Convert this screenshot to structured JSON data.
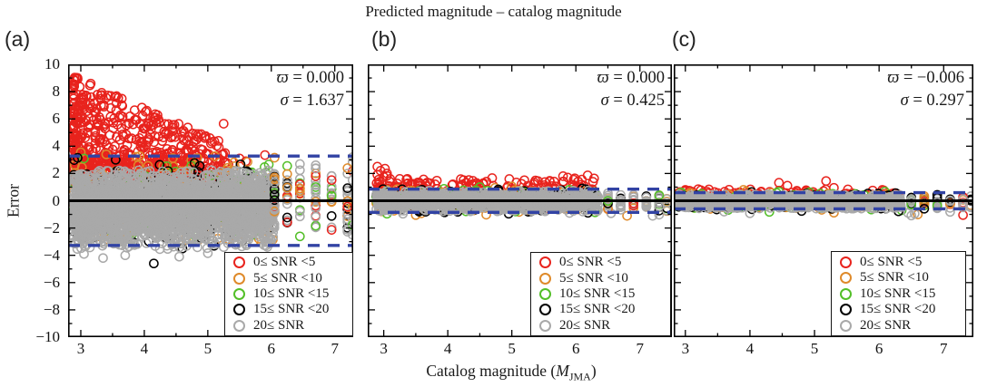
{
  "chart_data": {
    "type": "scatter",
    "title": "Predicted magnitude – catalog magnitude",
    "ylabel": "Error",
    "xlabel": {
      "prefix": "Catalog magnitude (",
      "var": "M",
      "sub": "JMA",
      "suffix": ")"
    },
    "axes": {
      "ylim": [
        -10,
        10
      ],
      "ytick_step": 2,
      "yminor_step": 1,
      "xticks": [
        3,
        4,
        5,
        6,
        7
      ],
      "xminor_step": 0.5,
      "grid": false
    },
    "colors": {
      "red": "#e8231d",
      "orange": "#df8a2a",
      "green": "#53bf28",
      "black": "#000000",
      "gray": "#a9a9a9",
      "band_line": "#3243a4",
      "zero_line": "#000000"
    },
    "legend": [
      {
        "label": "0≤ SNR <5",
        "color": "red"
      },
      {
        "label": "5≤ SNR <10",
        "color": "orange"
      },
      {
        "label": "10≤ SNR <15",
        "color": "green"
      },
      {
        "label": "15≤ SNR <20",
        "color": "black"
      },
      {
        "label": "20≤ SNR",
        "color": "gray"
      }
    ],
    "legend_position": "bottom-right",
    "panels": [
      {
        "id": "a",
        "label": "(a)",
        "stats": {
          "sym1": "ϖ",
          "val1": "= 0.000",
          "sym2": "σ",
          "val2": "= 1.637"
        },
        "mean": 0.0,
        "sigma": 1.637,
        "band": 3.274,
        "xlim": [
          2.8,
          7.29
        ],
        "series": [
          {
            "color": "red",
            "type": "wedge",
            "n": 540,
            "x0": 2.88,
            "x1": 5.35,
            "xpow": 1.7,
            "ymin": 1.4,
            "ytop0": 9.2,
            "yslope": -2.1,
            "ytopmin": 2.8,
            "ypow": 1.2,
            "extra": [
              [
                5.25,
                5.65
              ],
              [
                5.05,
                4.2
              ],
              [
                5.5,
                3.1
              ],
              [
                5.9,
                3.35
              ],
              [
                4.95,
                4.6
              ],
              [
                5.6,
                2.9
              ]
            ]
          },
          {
            "color": "red",
            "type": "band",
            "n": 200,
            "x0": 2.88,
            "x1": 4.9,
            "xpow": 1.0,
            "mu": 2.6,
            "sd": 0.55,
            "ymin": 1.7,
            "ymax": 3.8,
            "extra": []
          },
          {
            "color": "orange",
            "type": "band",
            "n": 260,
            "x0": 2.88,
            "x1": 6.05,
            "xpow": 1.1,
            "mu": -0.1,
            "sd": 1.55,
            "ymin": -3.4,
            "ymax": 3.3,
            "extra": [
              [
                3.0,
                3.55
              ],
              [
                5.95,
                -2.3
              ],
              [
                6.0,
                1.6
              ],
              [
                3.4,
                3.4
              ]
            ]
          },
          {
            "color": "green",
            "type": "band",
            "n": 170,
            "x0": 2.88,
            "x1": 6.05,
            "xpow": 1.1,
            "mu": 0.0,
            "sd": 1.3,
            "ymin": -2.9,
            "ymax": 2.9,
            "extra": [
              [
                5.7,
                -2.5
              ],
              [
                5.78,
                -2.15
              ],
              [
                3.05,
                3.1
              ]
            ]
          },
          {
            "color": "black",
            "type": "band",
            "n": 230,
            "x0": 2.88,
            "x1": 6.05,
            "xpow": 1.1,
            "mu": -0.2,
            "sd": 1.45,
            "ymin": -3.2,
            "ymax": 3.0,
            "extra": [
              [
                4.15,
                -4.6
              ],
              [
                2.95,
                3.15
              ],
              [
                3.55,
                3.0
              ],
              [
                4.6,
                -3.5
              ],
              [
                5.1,
                -3.3
              ]
            ]
          },
          {
            "color": "gray",
            "type": "band",
            "n": 2400,
            "x0": 2.88,
            "x1": 6.05,
            "xpow": 1.12,
            "mu": -0.55,
            "sd": 1.45,
            "ymin": -3.55,
            "ymax": 2.25,
            "extra": [
              [
                3.35,
                -4.2
              ],
              [
                4.55,
                -4.1
              ],
              [
                5.0,
                -3.85
              ],
              [
                3.05,
                -3.9
              ],
              [
                3.7,
                -4.0
              ]
            ]
          }
        ],
        "columns": {
          "mags": [
            6.05,
            6.25,
            6.45,
            6.7,
            6.95,
            7.2,
            7.28
          ],
          "counts": [
            24,
            20,
            18,
            24,
            16,
            20,
            12
          ],
          "mu": 0.3,
          "sd": 1.5,
          "ymin": -2.65,
          "ymax": 3.2,
          "weights": [
            [
              "gray",
              0.52
            ],
            [
              "orange",
              0.16
            ],
            [
              "black",
              0.12
            ],
            [
              "green",
              0.1
            ],
            [
              "red",
              0.1
            ]
          ]
        }
      },
      {
        "id": "b",
        "label": "(b)",
        "stats": {
          "sym1": "ϖ",
          "val1": "= 0.000",
          "sym2": "σ",
          "val2": "= 0.425"
        },
        "mean": 0.0,
        "sigma": 0.425,
        "band": 0.85,
        "xlim": [
          2.75,
          7.5
        ],
        "series": [
          {
            "color": "red",
            "type": "band",
            "n": 150,
            "x0": 2.88,
            "x1": 6.3,
            "xpow": 1.5,
            "mu": 1.0,
            "sd": 0.4,
            "ymin": 0.5,
            "ymax": 1.9,
            "extra": [
              [
                2.9,
                2.5
              ],
              [
                2.95,
                2.2
              ],
              [
                3.02,
                2.35
              ],
              [
                2.9,
                1.9
              ],
              [
                3.0,
                1.75
              ],
              [
                2.92,
                1.55
              ],
              [
                3.1,
                1.6
              ],
              [
                3.05,
                2.0
              ],
              [
                4.33,
                1.52
              ],
              [
                4.45,
                1.3
              ],
              [
                3.55,
                1.35
              ],
              [
                3.8,
                1.2
              ],
              [
                5.5,
                1.0
              ],
              [
                6.0,
                0.85
              ]
            ]
          },
          {
            "color": "red",
            "type": "band",
            "n": 60,
            "x0": 2.88,
            "x1": 6.3,
            "xpow": 1.0,
            "mu": 0.1,
            "sd": 0.3,
            "ymin": -0.6,
            "ymax": 0.6,
            "extra": []
          },
          {
            "color": "orange",
            "type": "band",
            "n": 190,
            "x0": 2.88,
            "x1": 6.3,
            "xpow": 1.1,
            "mu": 0.0,
            "sd": 0.45,
            "ymin": -1.0,
            "ymax": 1.0,
            "extra": [
              [
                3.5,
                -1.05
              ],
              [
                4.6,
                -1.02
              ],
              [
                6.8,
                -1.1
              ],
              [
                5.0,
                1.05
              ]
            ]
          },
          {
            "color": "green",
            "type": "band",
            "n": 130,
            "x0": 2.88,
            "x1": 6.3,
            "xpow": 1.1,
            "mu": 0.0,
            "sd": 0.4,
            "ymin": -0.9,
            "ymax": 0.9,
            "extra": [
              [
                3.05,
                -0.95
              ],
              [
                4.5,
                1.0
              ],
              [
                6.3,
                -0.85
              ]
            ]
          },
          {
            "color": "black",
            "type": "band",
            "n": 180,
            "x0": 2.88,
            "x1": 6.3,
            "xpow": 1.1,
            "mu": 0.0,
            "sd": 0.4,
            "ymin": -0.9,
            "ymax": 0.9,
            "extra": [
              [
                4.95,
                -0.95
              ],
              [
                6.15,
                0.85
              ]
            ]
          },
          {
            "color": "gray",
            "type": "band",
            "n": 1100,
            "x0": 2.88,
            "x1": 6.35,
            "xpow": 1.05,
            "mu": -0.05,
            "sd": 0.4,
            "ymin": -0.8,
            "ymax": 0.75,
            "extra": [
              [
                7.2,
                -1.1
              ],
              [
                7.3,
                -1.02
              ],
              [
                6.55,
                -0.92
              ],
              [
                3.3,
                -0.95
              ],
              [
                5.9,
                -0.9
              ]
            ]
          }
        ],
        "columns": {
          "mags": [
            6.5,
            6.7,
            6.9,
            7.1,
            7.3,
            7.42
          ],
          "counts": [
            18,
            14,
            12,
            14,
            12,
            8
          ],
          "mu": -0.08,
          "sd": 0.35,
          "ymin": -0.85,
          "ymax": 0.6,
          "weights": [
            [
              "gray",
              0.55
            ],
            [
              "orange",
              0.15
            ],
            [
              "black",
              0.12
            ],
            [
              "green",
              0.09
            ],
            [
              "red",
              0.09
            ]
          ]
        }
      },
      {
        "id": "c",
        "label": "(c)",
        "stats": {
          "sym1": "ϖ",
          "val1": "= −0.006",
          "sym2": "σ",
          "val2": "= 0.297"
        },
        "mean": -0.006,
        "sigma": 0.297,
        "band": 0.594,
        "xlim": [
          2.82,
          7.46
        ],
        "series": [
          {
            "color": "red",
            "type": "band",
            "n": 110,
            "x0": 2.88,
            "x1": 6.3,
            "xpow": 1.3,
            "mu": 0.45,
            "sd": 0.25,
            "ymin": 0.2,
            "ymax": 0.85,
            "extra": [
              [
                4.45,
                1.32
              ],
              [
                4.58,
                1.1
              ],
              [
                5.18,
                1.45
              ],
              [
                5.3,
                0.95
              ],
              [
                3.2,
                0.85
              ],
              [
                3.0,
                0.8
              ],
              [
                7.3,
                -1.05
              ],
              [
                5.9,
                0.75
              ],
              [
                6.05,
                0.8
              ]
            ]
          },
          {
            "color": "red",
            "type": "band",
            "n": 50,
            "x0": 2.88,
            "x1": 6.3,
            "xpow": 1.0,
            "mu": 0.0,
            "sd": 0.25,
            "ymin": -0.5,
            "ymax": 0.5,
            "extra": []
          },
          {
            "color": "orange",
            "type": "band",
            "n": 160,
            "x0": 2.88,
            "x1": 6.3,
            "xpow": 1.1,
            "mu": 0.0,
            "sd": 0.32,
            "ymin": -0.72,
            "ymax": 0.72,
            "extra": [
              [
                6.6,
                -1.0
              ],
              [
                5.3,
                -0.88
              ],
              [
                3.9,
                0.8
              ]
            ]
          },
          {
            "color": "green",
            "type": "band",
            "n": 120,
            "x0": 2.88,
            "x1": 6.3,
            "xpow": 1.1,
            "mu": 0.0,
            "sd": 0.3,
            "ymin": -0.68,
            "ymax": 0.68,
            "extra": [
              [
                4.3,
                -0.82
              ],
              [
                6.35,
                -0.7
              ]
            ]
          },
          {
            "color": "black",
            "type": "band",
            "n": 160,
            "x0": 2.88,
            "x1": 6.3,
            "xpow": 1.1,
            "mu": 0.0,
            "sd": 0.3,
            "ymin": -0.68,
            "ymax": 0.68,
            "extra": [
              [
                6.3,
                -0.78
              ],
              [
                4.8,
                -0.75
              ]
            ]
          },
          {
            "color": "gray",
            "type": "band",
            "n": 900,
            "x0": 2.88,
            "x1": 6.35,
            "xpow": 1.05,
            "mu": -0.06,
            "sd": 0.3,
            "ymin": -0.58,
            "ymax": 0.48,
            "extra": [
              [
                4.0,
                -0.92
              ],
              [
                6.5,
                -1.08
              ],
              [
                6.55,
                -0.95
              ],
              [
                7.1,
                -0.82
              ],
              [
                3.6,
                -0.8
              ],
              [
                6.45,
                -0.9
              ]
            ]
          }
        ],
        "columns": {
          "mags": [
            6.5,
            6.7,
            6.9,
            7.1,
            7.3,
            7.42
          ],
          "counts": [
            16,
            12,
            11,
            13,
            11,
            7
          ],
          "mu": -0.06,
          "sd": 0.26,
          "ymin": -0.66,
          "ymax": 0.5,
          "weights": [
            [
              "gray",
              0.55
            ],
            [
              "orange",
              0.15
            ],
            [
              "black",
              0.12
            ],
            [
              "green",
              0.09
            ],
            [
              "red",
              0.09
            ]
          ]
        }
      }
    ],
    "reference_lines": {
      "zero_line": 0,
      "dashed_band": "±2σ"
    }
  }
}
